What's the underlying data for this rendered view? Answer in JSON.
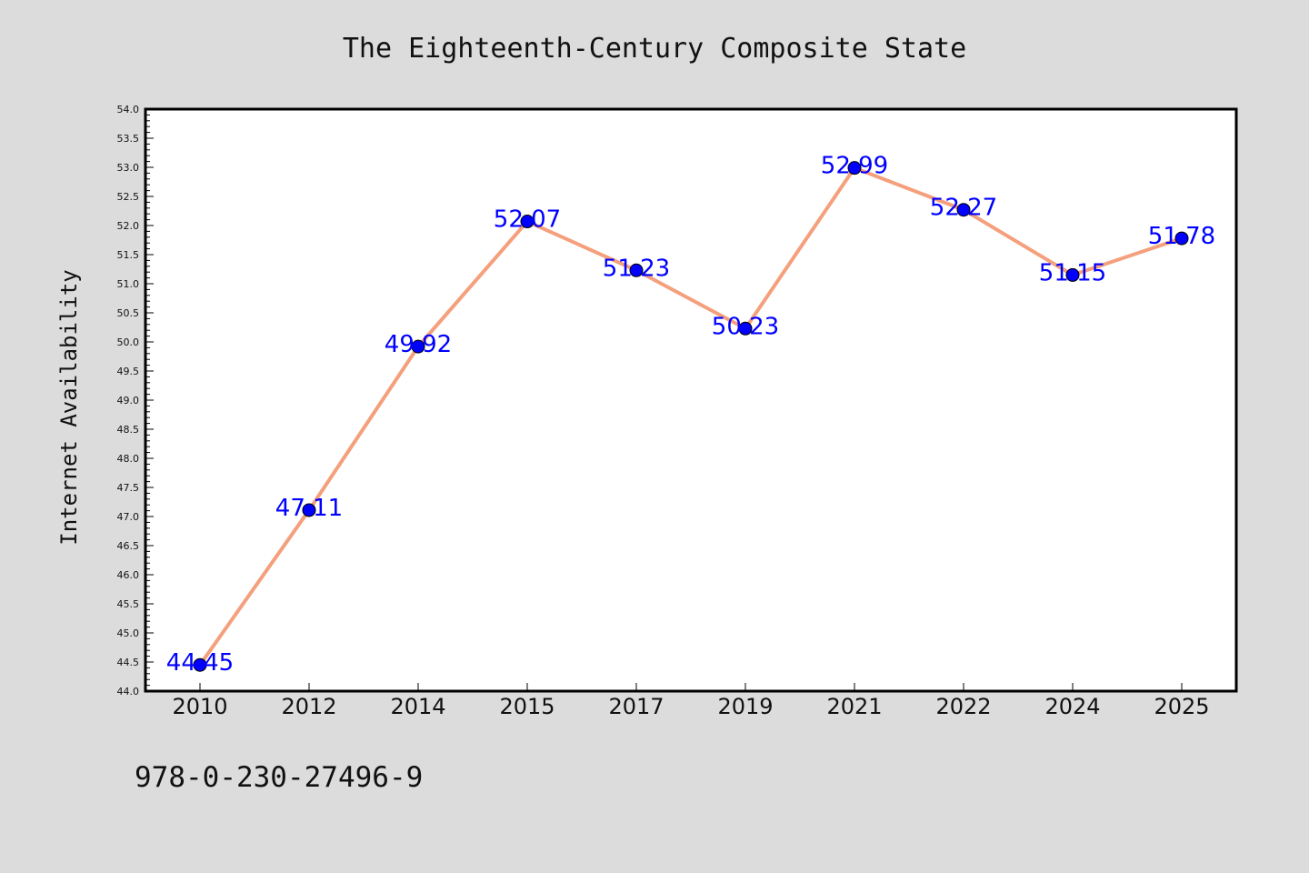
{
  "chart_data": {
    "type": "line",
    "title": "The Eighteenth-Century Composite State",
    "xlabel": "",
    "ylabel": "Internet Availability",
    "categories": [
      "2010",
      "2012",
      "2014",
      "2015",
      "2017",
      "2019",
      "2021",
      "2022",
      "2024",
      "2025"
    ],
    "series": [
      {
        "values": [
          44.45,
          47.11,
          49.92,
          52.07,
          51.23,
          50.23,
          52.99,
          52.27,
          51.15,
          51.78
        ],
        "labels": [
          "44.45",
          "47.11",
          "49.92",
          "52.07",
          "51.23",
          "50.23",
          "52.99",
          "52.27",
          "51.15",
          "51.78"
        ],
        "line_color": "#f4a07c",
        "marker_color": "#0000ff",
        "label_color": "#0000ff"
      }
    ],
    "ylim": [
      44.0,
      54.0
    ],
    "ytick_step": 0.5,
    "ytick_labels": [
      "44.0",
      "44.5",
      "45.0",
      "45.5",
      "46.0",
      "46.5",
      "47.0",
      "47.5",
      "48.0",
      "48.5",
      "49.0",
      "49.5",
      "50.0",
      "50.5",
      "51.0",
      "51.5",
      "52.0",
      "52.5",
      "53.0",
      "53.5",
      "54.0"
    ],
    "grid": false,
    "legend": "none"
  },
  "footer": {
    "isbn": "978-0-230-27496-9"
  },
  "colors": {
    "background": "#dcdcdc",
    "plot_background": "#ffffff",
    "axis": "#000000"
  }
}
